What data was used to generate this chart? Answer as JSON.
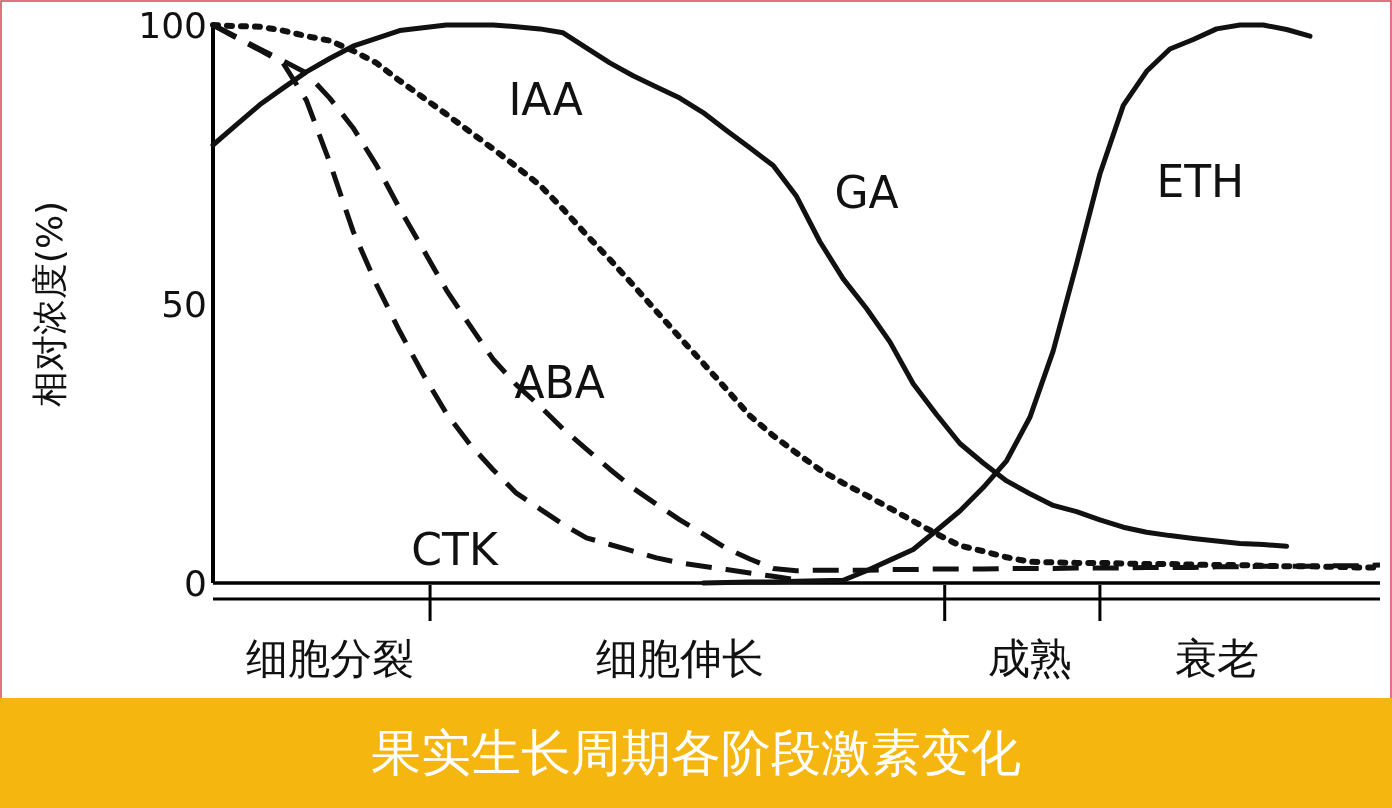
{
  "chart_data": {
    "type": "line",
    "title": "果实生长周期各阶段激素变化",
    "ylabel": "相对浓度(%)",
    "ylim": [
      0,
      100
    ],
    "yticks": [
      0,
      50,
      100
    ],
    "grid": false,
    "categories": [
      null,
      null,
      null,
      null,
      null,
      "细胞分裂",
      null,
      null,
      null,
      null,
      null,
      null,
      null,
      null,
      null,
      null,
      null,
      null,
      null,
      null,
      "细胞伸长",
      null,
      null,
      null,
      null,
      null,
      null,
      null,
      null,
      null,
      null,
      null,
      null,
      null,
      null,
      "成熟",
      null,
      null,
      null,
      null,
      null,
      null,
      null,
      "衰老",
      null,
      null,
      null,
      null,
      null,
      null,
      null
    ],
    "series": [
      {
        "name": "IAA",
        "color": "#111111",
        "line_style": "dotted",
        "values": [
          100,
          99.8,
          99.7,
          99,
          98,
          97.2,
          95.4,
          93.2,
          90,
          87,
          84,
          80.9,
          77.8,
          74.6,
          71.3,
          67,
          62.4,
          58,
          53.4,
          48.7,
          44,
          39.4,
          34.7,
          30,
          26.4,
          23.3,
          20.3,
          17.9,
          15.7,
          13.4,
          11.1,
          8.8,
          6.7,
          5.7,
          4.6,
          3.8,
          3.7,
          3.6,
          3.6,
          3.5,
          3.4,
          3.4,
          3.3,
          3.2,
          3.2,
          3.1,
          3.0,
          3.0,
          2.9,
          2.8,
          2.8
        ]
      },
      {
        "name": "GA",
        "color": "#111111",
        "line_style": "solid",
        "values": [
          78.5,
          82.1,
          85.7,
          88.7,
          91.6,
          94,
          96.2,
          97.6,
          99,
          99.5,
          100,
          100,
          100,
          99.7,
          99.3,
          98.6,
          95.9,
          93.2,
          90.9,
          88.9,
          86.9,
          84.3,
          81.1,
          78,
          74.8,
          69.3,
          61.2,
          54.5,
          49.2,
          43.2,
          35.7,
          30.2,
          25,
          21.5,
          18.3,
          16,
          13.9,
          12.8,
          11.3,
          10,
          9.1,
          8.5,
          8,
          7.5,
          7.1,
          6.9,
          6.6,
          null,
          null,
          null,
          null
        ]
      },
      {
        "name": "ETH",
        "color": "#111111",
        "line_style": "solid",
        "values": [
          null,
          null,
          null,
          null,
          null,
          null,
          null,
          null,
          null,
          null,
          null,
          null,
          null,
          null,
          null,
          null,
          null,
          null,
          null,
          null,
          null,
          0,
          0.1,
          0.2,
          0.2,
          0.3,
          0.4,
          0.5,
          2.2,
          4.1,
          6,
          9.4,
          12.9,
          17.1,
          21.9,
          29.7,
          41.6,
          57.2,
          73.3,
          85.6,
          91.7,
          95.7,
          97.4,
          99.3,
          100,
          100,
          99.2,
          98,
          null,
          null,
          null
        ]
      },
      {
        "name": "ABA",
        "color": "#111111",
        "line_style": "dashed",
        "values": [
          100,
          97.9,
          95.7,
          93.6,
          91.4,
          86.9,
          81.6,
          74.9,
          67.1,
          59.8,
          52.5,
          46.2,
          40.1,
          35.5,
          31.7,
          27.6,
          24,
          20.4,
          17,
          14.1,
          11.3,
          8.8,
          6.2,
          4.3,
          2.6,
          2.2,
          2.3,
          2.3,
          2.3,
          2.4,
          2.4,
          2.5,
          2.5,
          2.5,
          2.6,
          2.6,
          2.6,
          2.7,
          2.7,
          2.7,
          2.8,
          2.8,
          2.8,
          2.9,
          2.9,
          3.0,
          3.0,
          3.0,
          3.1,
          3.1,
          3.2
        ]
      },
      {
        "name": "CTK",
        "color": "#111111",
        "line_style": "dashed",
        "values": [
          100,
          97.7,
          95.5,
          93.2,
          86.5,
          75.4,
          63.1,
          53.5,
          45.1,
          37.4,
          30.4,
          24.9,
          20.3,
          16.1,
          13.3,
          10.5,
          8.1,
          6.9,
          5.7,
          4.5,
          3.6,
          3,
          2.4,
          1.8,
          1.2,
          0.6,
          null,
          null,
          null,
          null,
          null,
          null,
          null,
          null,
          null,
          null,
          null,
          null,
          null,
          null,
          null,
          null,
          null,
          null,
          null,
          null,
          null,
          null,
          null,
          null,
          null
        ]
      }
    ]
  }
}
